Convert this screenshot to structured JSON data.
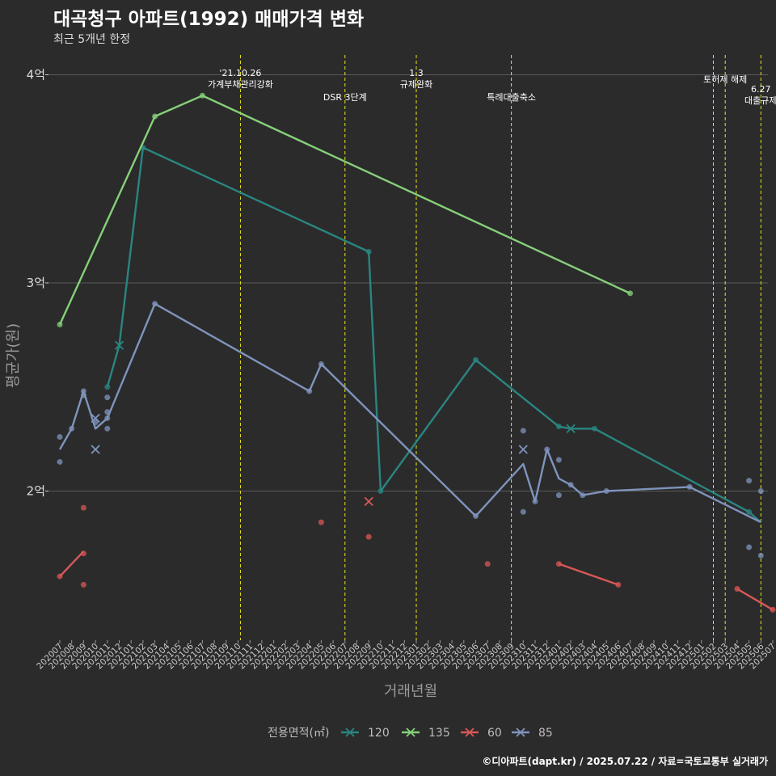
{
  "header": {
    "title": "대곡청구 아파트(1992) 매매가격 변화",
    "subtitle": "최근 5개년 한정"
  },
  "footer": "©디아파트(dapt.kr) / 2025.07.22 / 자료=국토교통부 실거래가",
  "colors": {
    "bg": "#2b2b2b",
    "grid": "#5a5a5a",
    "event_line": "#e6e619",
    "s120": "#2a8580",
    "s135": "#86d07a",
    "s60": "#d95757",
    "s85": "#7f94bd"
  },
  "chart_data": {
    "type": "line",
    "title": "대곡청구 아파트(1992) 매매가격 변화",
    "subtitle": "최근 5개년 한정",
    "xlabel": "거래년월",
    "ylabel": "평균가(원)",
    "ylim": [
      14500,
      41000
    ],
    "y_ticks": [
      {
        "value": 20000,
        "label": "2억"
      },
      {
        "value": 30000,
        "label": "3억"
      },
      {
        "value": 40000,
        "label": "4억"
      }
    ],
    "x_start": "202007",
    "x_ticks": [
      "202007",
      "202008",
      "202009",
      "202010",
      "202011",
      "202012",
      "202101",
      "202102",
      "202103",
      "202104",
      "202105",
      "202106",
      "202107",
      "202108",
      "202109",
      "202110",
      "202111",
      "202112",
      "202201",
      "202202",
      "202203",
      "202204",
      "202205",
      "202206",
      "202207",
      "202208",
      "202209",
      "202210",
      "202211",
      "202212",
      "202301",
      "202302",
      "202303",
      "202304",
      "202305",
      "202306",
      "202307",
      "202308",
      "202309",
      "202310",
      "202311",
      "202312",
      "202401",
      "202402",
      "202403",
      "202404",
      "202405",
      "202406",
      "202407",
      "202408",
      "202409",
      "202410",
      "202411",
      "202412",
      "202501",
      "202502",
      "202503",
      "202504",
      "202505",
      "202506",
      "202507"
    ],
    "events": [
      {
        "month": 15.2,
        "lines": [
          "'21.10.26",
          "가계부채관리강화"
        ],
        "row": 0
      },
      {
        "month": 24,
        "lines": [
          "DSR 3단계"
        ],
        "row": 1
      },
      {
        "month": 30,
        "lines": [
          "1.3",
          "규제완화"
        ],
        "row": 0
      },
      {
        "month": 38,
        "lines": [
          "특례대출축소"
        ],
        "row": 1
      },
      {
        "month": 55,
        "lines": [],
        "row": 0
      },
      {
        "month": 56,
        "lines": [
          "토허제 해제"
        ],
        "row": 0
      },
      {
        "month": 59,
        "lines": [
          "6.27",
          "대출규제"
        ],
        "row": 1
      }
    ],
    "legend_title": "전용면적(㎡)",
    "series": [
      {
        "name": "120",
        "color_key": "s120",
        "line": [
          [
            4,
            25000
          ],
          [
            5,
            27000
          ],
          [
            7,
            36500
          ],
          [
            26,
            31500
          ],
          [
            27,
            20000
          ],
          [
            35,
            26300
          ],
          [
            42,
            23100
          ],
          [
            43,
            23000
          ],
          [
            45,
            23000
          ],
          [
            58,
            19000
          ],
          [
            59,
            18500
          ]
        ],
        "points": [
          [
            4,
            25000
          ],
          [
            7,
            36500
          ],
          [
            26,
            31500
          ],
          [
            27,
            20000
          ],
          [
            35,
            26300
          ],
          [
            42,
            23100
          ],
          [
            45,
            23000
          ],
          [
            58,
            19000
          ]
        ],
        "crosses": [
          [
            5,
            27000
          ],
          [
            43,
            23000
          ]
        ]
      },
      {
        "name": "135",
        "color_key": "s135",
        "line": [
          [
            0,
            28000
          ],
          [
            8,
            38000
          ],
          [
            12,
            39000
          ],
          [
            48,
            29500
          ]
        ],
        "points": [
          [
            0,
            28000
          ],
          [
            8,
            38000
          ],
          [
            12,
            39000
          ],
          [
            48,
            29500
          ]
        ],
        "crosses": []
      },
      {
        "name": "60",
        "color_key": "s60",
        "line": [
          [
            0,
            15900
          ],
          [
            2,
            17100
          ],
          [
            null,
            null
          ],
          [
            42,
            16500
          ],
          [
            47,
            15500
          ],
          [
            null,
            null
          ],
          [
            57,
            15300
          ],
          [
            60,
            14300
          ]
        ],
        "points": [
          [
            0,
            15900
          ],
          [
            2,
            17000
          ],
          [
            2,
            19200
          ],
          [
            2,
            15500
          ],
          [
            22,
            18500
          ],
          [
            26,
            17800
          ],
          [
            36,
            16500
          ],
          [
            42,
            16500
          ],
          [
            47,
            15500
          ],
          [
            57,
            15300
          ],
          [
            60,
            14300
          ]
        ],
        "crosses": [
          [
            26,
            19500
          ]
        ]
      },
      {
        "name": "85",
        "color_key": "s85",
        "line": [
          [
            0,
            22000
          ],
          [
            1,
            23000
          ],
          [
            2,
            24800
          ],
          [
            3,
            23000
          ],
          [
            4,
            23500
          ],
          [
            8,
            29000
          ],
          [
            21,
            24800
          ],
          [
            22,
            26100
          ],
          [
            35,
            18800
          ],
          [
            39,
            21300
          ],
          [
            40,
            19500
          ],
          [
            41,
            22000
          ],
          [
            42,
            20600
          ],
          [
            43,
            20300
          ],
          [
            44,
            19800
          ],
          [
            46,
            20000
          ],
          [
            53,
            20200
          ],
          [
            59,
            18500
          ]
        ],
        "points": [
          [
            0,
            22600
          ],
          [
            0,
            21400
          ],
          [
            1,
            23000
          ],
          [
            2,
            24800
          ],
          [
            2,
            24600
          ],
          [
            3,
            23300
          ],
          [
            4,
            24500
          ],
          [
            4,
            23800
          ],
          [
            4,
            23500
          ],
          [
            4,
            23000
          ],
          [
            8,
            29000
          ],
          [
            21,
            24800
          ],
          [
            22,
            26100
          ],
          [
            35,
            18800
          ],
          [
            39,
            22900
          ],
          [
            39,
            19000
          ],
          [
            40,
            19500
          ],
          [
            41,
            22000
          ],
          [
            42,
            21500
          ],
          [
            42,
            19800
          ],
          [
            43,
            20300
          ],
          [
            44,
            19800
          ],
          [
            46,
            20000
          ],
          [
            53,
            20200
          ],
          [
            58,
            20500
          ],
          [
            58,
            17300
          ],
          [
            59,
            20000
          ],
          [
            59,
            16900
          ]
        ],
        "crosses": [
          [
            3,
            23500
          ],
          [
            3,
            22000
          ],
          [
            39,
            22000
          ]
        ]
      }
    ]
  }
}
